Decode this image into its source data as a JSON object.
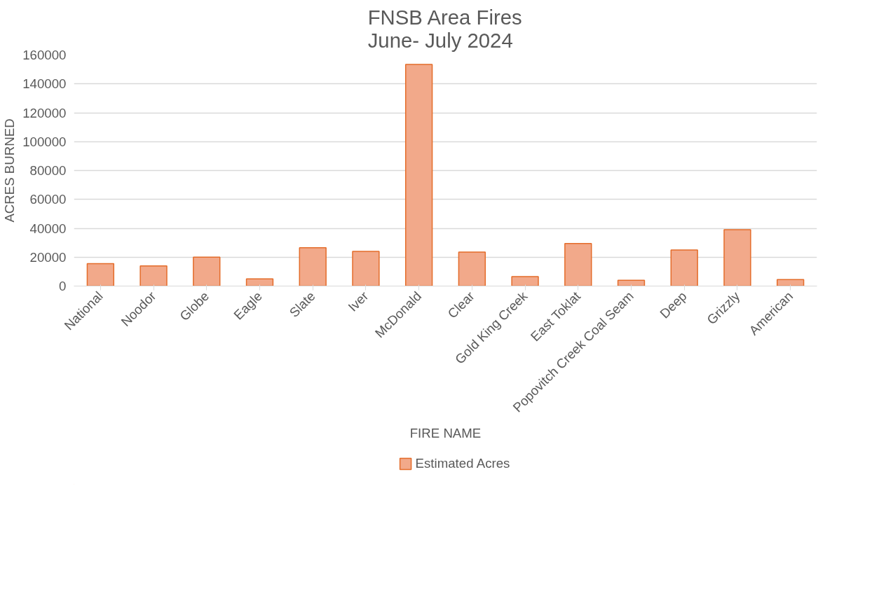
{
  "chart_data": {
    "type": "bar",
    "title": "FNSB Area Fires\nJune- July 2024",
    "xlabel": "FIRE NAME",
    "ylabel": "ACRES BURNED",
    "categories": [
      "National",
      "Noodor",
      "Globe",
      "Eagle",
      "Slate",
      "Iver",
      "McDonald",
      "Clear",
      "Gold King Creek",
      "East Toklat",
      "Popovitch Creek Coal Seam",
      "Deep",
      "Grizzly",
      "American"
    ],
    "series": [
      {
        "name": "Estimated Acres",
        "color": "#f2a98a",
        "values": [
          15500,
          14000,
          20000,
          5000,
          26500,
          24000,
          153500,
          23500,
          6500,
          29500,
          4000,
          25000,
          39000,
          4500
        ]
      }
    ],
    "ylim": [
      0,
      160000
    ],
    "yticks": [
      0,
      20000,
      40000,
      60000,
      80000,
      100000,
      120000,
      140000,
      160000
    ],
    "grid": "y",
    "legend": "bottom"
  }
}
